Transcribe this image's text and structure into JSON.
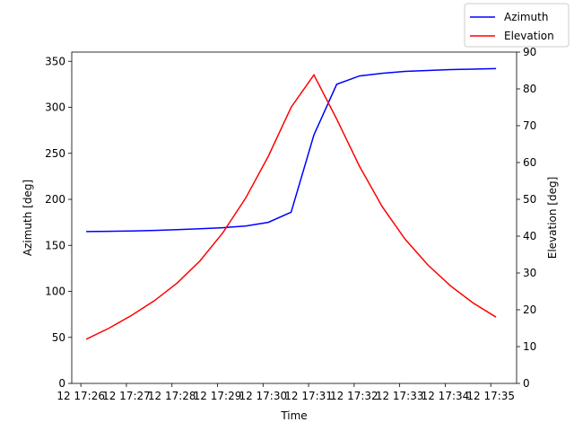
{
  "chart_data": {
    "type": "line",
    "title": "",
    "xlabel": "Time",
    "ylabel_left": "Azimuth [deg]",
    "ylabel_right": "Elevation [deg]",
    "x_ticks": [
      "12 17:26",
      "12 17:27",
      "12 17:28",
      "12 17:29",
      "12 17:30",
      "12 17:31",
      "12 17:32",
      "12 17:33",
      "12 17:34",
      "12 17:35"
    ],
    "x": [
      "17:26:07",
      "17:26:37",
      "17:27:07",
      "17:27:37",
      "17:28:07",
      "17:28:37",
      "17:29:07",
      "17:29:37",
      "17:30:07",
      "17:30:37",
      "17:31:07",
      "17:31:37",
      "17:32:07",
      "17:32:37",
      "17:33:07",
      "17:33:37",
      "17:34:07",
      "17:34:37",
      "17:35:07"
    ],
    "xlim": [
      "17:25:48",
      "17:35:34"
    ],
    "y_left_ticks": [
      0,
      50,
      100,
      150,
      200,
      250,
      300,
      350
    ],
    "y_left_lim": [
      0,
      360
    ],
    "y_right_ticks": [
      0,
      10,
      20,
      30,
      40,
      50,
      60,
      70,
      80,
      90
    ],
    "y_right_lim": [
      0,
      90
    ],
    "legend_position": "top-right",
    "grid": false,
    "series": [
      {
        "name": "Azimuth",
        "axis": "left",
        "color": "#0000ff",
        "values": [
          165,
          165.3,
          165.7,
          166.2,
          167,
          168,
          169.2,
          171,
          175,
          186,
          270,
          325,
          334,
          337,
          339,
          340,
          341,
          341.5,
          342
        ]
      },
      {
        "name": "Elevation",
        "axis": "right",
        "color": "#ff0000",
        "values": [
          12,
          15,
          18.5,
          22.5,
          27.3,
          33.3,
          40.9,
          50.3,
          61.7,
          75,
          83.8,
          71.8,
          59,
          48,
          39.2,
          32.2,
          26.5,
          21.8,
          18
        ]
      }
    ]
  }
}
